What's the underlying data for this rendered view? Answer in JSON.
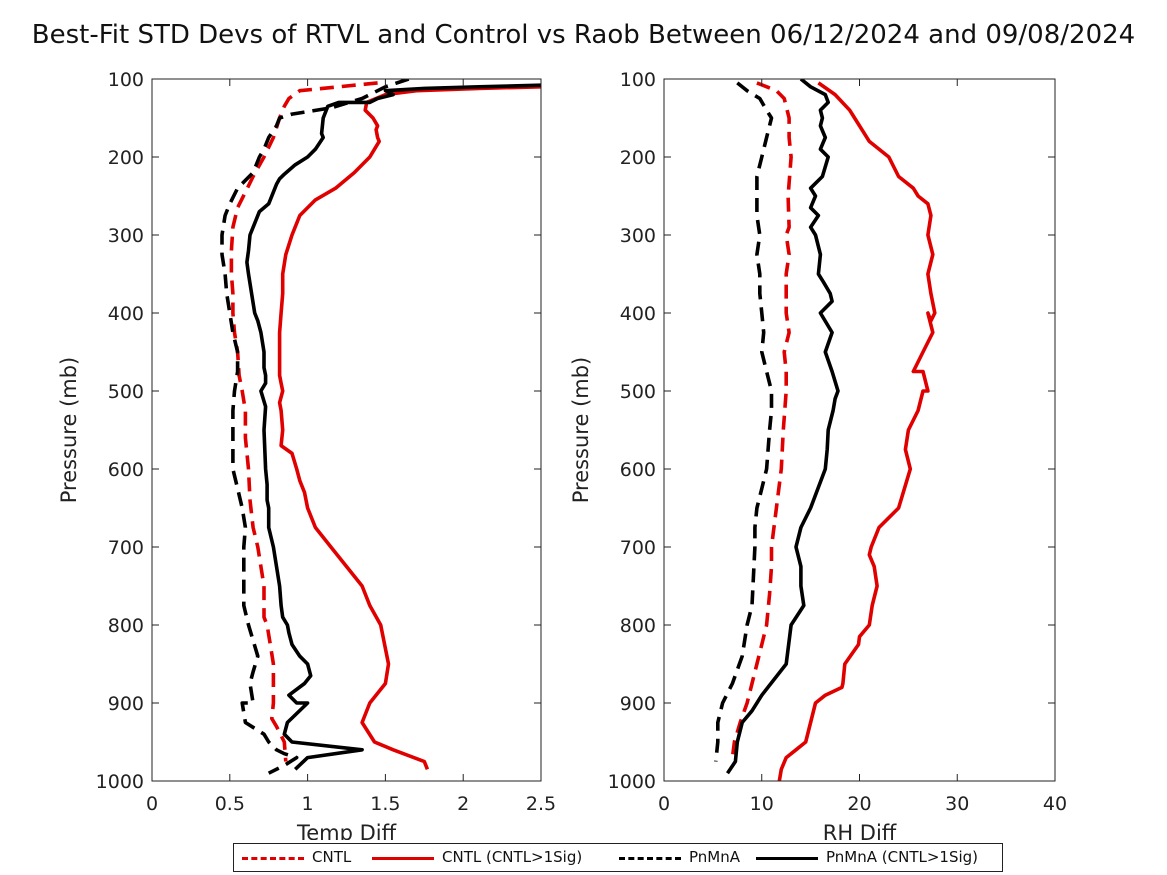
{
  "title": "Best-Fit STD Devs of RTVL and Control vs Raob Between 06/12/2024 and 09/08/2024",
  "legend": {
    "entries": [
      {
        "label": "CNTL",
        "color": "#e00000",
        "style": "dashed"
      },
      {
        "label": "CNTL (CNTL>1Sig)",
        "color": "#e00000",
        "style": "solid"
      },
      {
        "label": "PnMnA",
        "color": "#000000",
        "style": "dashed"
      },
      {
        "label": "PnMnA (CNTL>1Sig)",
        "color": "#000000",
        "style": "solid"
      }
    ]
  },
  "chart_data": [
    {
      "type": "line",
      "xlabel": "Temp Diff",
      "ylabel": "Pressure (mb)",
      "xlim": [
        0,
        2.5
      ],
      "ylim": [
        100,
        1000
      ],
      "y_reversed": true,
      "xticks": [
        0,
        0.5,
        1,
        1.5,
        2,
        2.5
      ],
      "xtick_labels": [
        "0",
        "0.5",
        "1",
        "1.5",
        "2",
        "2.5"
      ],
      "yticks": [
        100,
        200,
        300,
        400,
        500,
        600,
        700,
        800,
        900,
        1000
      ],
      "ytick_labels": [
        "100",
        "200",
        "300",
        "400",
        "500",
        "600",
        "700",
        "800",
        "900",
        "1000"
      ],
      "series": [
        {
          "name": "CNTL",
          "color": "#e00000",
          "style": "dashed",
          "x": [
            1.45,
            0.95,
            0.88,
            0.85,
            0.82,
            0.78,
            0.72,
            0.65,
            0.6,
            0.55,
            0.52,
            0.51,
            0.51,
            0.52,
            0.52,
            0.53,
            0.55,
            0.56,
            0.58,
            0.6,
            0.6,
            0.62,
            0.63,
            0.65,
            0.68,
            0.7,
            0.72,
            0.72,
            0.74,
            0.76,
            0.78,
            0.78,
            0.77,
            0.8,
            0.85,
            0.86
          ],
          "y": [
            105,
            115,
            125,
            135,
            150,
            175,
            200,
            225,
            245,
            265,
            290,
            320,
            350,
            375,
            400,
            425,
            450,
            480,
            500,
            525,
            560,
            600,
            640,
            675,
            700,
            725,
            750,
            790,
            800,
            825,
            850,
            900,
            920,
            930,
            950,
            975
          ]
        },
        {
          "name": "CNTL (CNTL>1Sig)",
          "color": "#e00000",
          "style": "solid",
          "x": [
            2.5,
            2.1,
            1.7,
            1.5,
            1.38,
            1.37,
            1.42,
            1.45,
            1.44,
            1.45,
            1.46,
            1.43,
            1.4,
            1.3,
            1.18,
            1.05,
            0.95,
            0.9,
            0.86,
            0.84,
            0.84,
            0.83,
            0.82,
            0.82,
            0.82,
            0.82,
            0.83,
            0.84,
            0.82,
            0.83,
            0.84,
            0.83,
            0.9,
            0.93,
            0.95,
            0.98,
            1.0,
            1.05,
            1.15,
            1.25,
            1.35,
            1.4,
            1.47,
            1.52,
            1.5,
            1.4,
            1.35,
            1.43,
            1.55,
            1.75,
            1.77
          ],
          "y": [
            110,
            112,
            115,
            120,
            130,
            140,
            150,
            160,
            165,
            175,
            180,
            190,
            200,
            220,
            240,
            255,
            275,
            300,
            325,
            350,
            375,
            400,
            425,
            450,
            470,
            480,
            490,
            500,
            515,
            525,
            550,
            570,
            580,
            600,
            615,
            630,
            650,
            675,
            700,
            725,
            750,
            775,
            800,
            850,
            875,
            900,
            925,
            950,
            960,
            975,
            985
          ]
        },
        {
          "name": "PnMnA",
          "color": "#000000",
          "style": "dashed",
          "x": [
            1.65,
            1.5,
            1.35,
            1.15,
            0.9,
            0.82,
            0.8,
            0.75,
            0.72,
            0.69,
            0.65,
            0.55,
            0.5,
            0.47,
            0.45,
            0.45,
            0.47,
            0.48,
            0.5,
            0.52,
            0.55,
            0.55,
            0.53,
            0.52,
            0.52,
            0.52,
            0.52,
            0.55,
            0.58,
            0.6,
            0.59,
            0.59,
            0.59,
            0.62,
            0.68,
            0.65,
            0.63,
            0.65,
            0.58,
            0.6,
            0.72,
            0.75,
            0.8,
            0.85,
            0.93,
            0.85,
            0.75
          ],
          "y": [
            100,
            110,
            125,
            137,
            145,
            150,
            160,
            175,
            190,
            200,
            220,
            240,
            260,
            275,
            300,
            325,
            350,
            375,
            400,
            425,
            450,
            475,
            500,
            525,
            550,
            575,
            600,
            625,
            650,
            675,
            700,
            750,
            775,
            800,
            840,
            860,
            875,
            900,
            900,
            925,
            940,
            950,
            960,
            965,
            970,
            980,
            990
          ]
        },
        {
          "name": "PnMnA (CNTL>1Sig)",
          "color": "#000000",
          "style": "solid",
          "x": [
            2.5,
            2.1,
            1.75,
            1.5,
            1.55,
            1.45,
            1.4,
            1.2,
            1.13,
            1.1,
            1.09,
            1.1,
            1.05,
            1.0,
            0.92,
            0.85,
            0.82,
            0.8,
            0.75,
            0.69,
            0.66,
            0.63,
            0.62,
            0.61,
            0.62,
            0.64,
            0.66,
            0.68,
            0.7,
            0.72,
            0.72,
            0.73,
            0.73,
            0.7,
            0.73,
            0.72,
            0.73,
            0.74,
            0.74,
            0.75,
            0.75,
            0.78,
            0.8,
            0.82,
            0.83,
            0.84,
            0.87,
            0.88,
            0.9,
            0.95,
            1.0,
            1.02,
            0.98,
            0.88,
            0.93,
            1.0,
            0.87,
            0.85,
            0.9,
            1.35,
            1.0,
            0.92
          ],
          "y": [
            108,
            110,
            112,
            115,
            120,
            125,
            130,
            130,
            135,
            150,
            170,
            175,
            190,
            200,
            210,
            222,
            228,
            235,
            260,
            270,
            285,
            300,
            320,
            335,
            350,
            375,
            400,
            410,
            425,
            450,
            470,
            480,
            490,
            500,
            520,
            550,
            600,
            620,
            640,
            650,
            675,
            700,
            725,
            750,
            775,
            790,
            800,
            810,
            825,
            840,
            850,
            865,
            875,
            890,
            900,
            900,
            925,
            940,
            950,
            960,
            970,
            985
          ]
        }
      ]
    },
    {
      "type": "line",
      "xlabel": "RH Diff",
      "ylabel": "Pressure (mb)",
      "xlim": [
        0,
        40
      ],
      "ylim": [
        100,
        1000
      ],
      "y_reversed": true,
      "xticks": [
        0,
        10,
        20,
        30,
        40
      ],
      "xtick_labels": [
        "0",
        "10",
        "20",
        "30",
        "40"
      ],
      "yticks": [
        100,
        200,
        300,
        400,
        500,
        600,
        700,
        800,
        900,
        1000
      ],
      "ytick_labels": [
        "100",
        "200",
        "300",
        "400",
        "500",
        "600",
        "700",
        "800",
        "900",
        "1000"
      ],
      "series": [
        {
          "name": "CNTL",
          "color": "#e00000",
          "style": "dashed",
          "x": [
            9.5,
            11.5,
            12.3,
            12.8,
            12.8,
            13.0,
            12.7,
            12.8,
            12.5,
            12.8,
            12.5,
            12.5,
            12.8,
            12.3,
            12.5,
            12.5,
            12.2,
            12.0,
            11.5,
            11.0,
            11.0,
            10.8,
            10.5,
            10.0,
            9.5,
            9.0,
            8.5,
            7.8,
            7.2,
            7.0
          ],
          "y": [
            105,
            115,
            125,
            150,
            175,
            200,
            250,
            290,
            300,
            325,
            350,
            400,
            425,
            450,
            475,
            500,
            550,
            600,
            650,
            700,
            725,
            760,
            800,
            825,
            850,
            875,
            900,
            925,
            950,
            970
          ]
        },
        {
          "name": "CNTL (CNTL>1Sig)",
          "color": "#e00000",
          "style": "solid",
          "x": [
            15.8,
            17.5,
            19.0,
            19.5,
            20.5,
            21.0,
            23.0,
            24.0,
            25.5,
            26.0,
            27.0,
            27.3,
            27.0,
            27.5,
            27.0,
            27.3,
            27.7,
            27.3,
            27.0,
            27.5,
            26.5,
            25.5,
            26.5,
            27.0,
            27.0,
            26.5,
            26.0,
            25.0,
            24.7,
            25.2,
            24.0,
            22.0,
            21.2,
            21.0,
            21.5,
            21.8,
            21.3,
            21.0,
            20.0,
            19.9,
            18.5,
            18.3,
            18.2,
            16.5,
            15.5,
            15.0,
            14.5,
            13.5,
            12.5,
            12.0,
            11.8
          ],
          "y": [
            105,
            120,
            140,
            150,
            170,
            180,
            200,
            225,
            240,
            250,
            260,
            275,
            300,
            325,
            350,
            375,
            400,
            410,
            400,
            425,
            450,
            475,
            475,
            500,
            500,
            500,
            525,
            550,
            575,
            600,
            650,
            675,
            700,
            710,
            725,
            750,
            775,
            800,
            815,
            825,
            850,
            875,
            880,
            890,
            900,
            925,
            950,
            960,
            970,
            985,
            1000
          ]
        },
        {
          "name": "PnMnA",
          "color": "#000000",
          "style": "dashed",
          "x": [
            7.5,
            8.5,
            9.8,
            10.5,
            11.0,
            10.5,
            10.0,
            9.5,
            9.5,
            9.5,
            9.8,
            9.5,
            9.8,
            9.8,
            10.0,
            10.2,
            10.0,
            10.5,
            11.0,
            11.0,
            10.8,
            10.5,
            10.0,
            9.5,
            9.3,
            9.3,
            9.0,
            8.5,
            8.0,
            7.0,
            6.0,
            5.5,
            5.5,
            5.3
          ],
          "y": [
            105,
            115,
            125,
            140,
            150,
            175,
            200,
            225,
            250,
            275,
            300,
            325,
            350,
            375,
            400,
            425,
            450,
            475,
            500,
            525,
            550,
            600,
            625,
            650,
            675,
            700,
            775,
            800,
            840,
            875,
            900,
            925,
            950,
            975
          ]
        },
        {
          "name": "PnMnA (CNTL>1Sig)",
          "color": "#000000",
          "style": "solid",
          "x": [
            14.0,
            15.0,
            16.5,
            16.8,
            16.0,
            16.2,
            16.0,
            16.5,
            16.0,
            16.8,
            16.2,
            15.0,
            15.5,
            15.0,
            15.8,
            15.0,
            15.5,
            16.0,
            15.8,
            16.3,
            17.0,
            17.2,
            16.0,
            17.2,
            16.5,
            17.2,
            17.8,
            17.5,
            17.3,
            16.8,
            16.7,
            16.5,
            15.0,
            14.0,
            13.5,
            14.0,
            14.0,
            14.3,
            13.0,
            12.5,
            10.0,
            9.0,
            8.0,
            7.5,
            7.3,
            6.5
          ],
          "y": [
            100,
            110,
            120,
            130,
            140,
            150,
            160,
            175,
            190,
            200,
            225,
            240,
            250,
            265,
            275,
            290,
            300,
            325,
            350,
            360,
            375,
            385,
            400,
            425,
            450,
            475,
            500,
            510,
            525,
            550,
            575,
            600,
            650,
            675,
            700,
            725,
            750,
            775,
            800,
            850,
            890,
            910,
            925,
            950,
            975,
            990
          ]
        }
      ]
    }
  ]
}
